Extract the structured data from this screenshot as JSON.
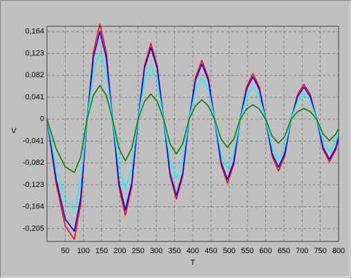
{
  "chart_data": {
    "type": "line",
    "x_label": "T",
    "y_label": "V",
    "x": [
      0,
      25,
      50,
      75,
      92.5,
      110,
      127.5,
      145,
      162.5,
      180,
      197.5,
      215,
      232.5,
      250,
      267.5,
      285,
      302.5,
      320,
      337.5,
      355,
      372.5,
      390,
      407.5,
      425,
      442.5,
      460,
      477.5,
      495,
      512.5,
      530,
      547.5,
      565,
      582.5,
      600,
      617.5,
      635,
      652.5,
      670,
      687.5,
      705,
      722.5,
      740,
      757.5,
      775,
      792.5,
      800
    ],
    "series": [
      {
        "color": "#ff0000",
        "values": [
          0,
          -0.12,
          -0.2,
          -0.225,
          -0.159,
          0,
          0.126,
          0.178,
          0.126,
          0,
          -0.127,
          -0.18,
          -0.127,
          0,
          0.1,
          0.142,
          0.1,
          0,
          -0.106,
          -0.15,
          -0.106,
          0,
          0.078,
          0.11,
          0.078,
          0,
          -0.085,
          -0.12,
          -0.085,
          0,
          0.06,
          0.085,
          0.06,
          0,
          -0.069,
          -0.097,
          -0.069,
          0,
          0.046,
          0.065,
          0.046,
          0,
          -0.057,
          -0.08,
          -0.057,
          -0.035
        ]
      },
      {
        "color": "#0000ff",
        "values": [
          0,
          -0.112,
          -0.187,
          -0.21,
          -0.148,
          0,
          0.116,
          0.164,
          0.116,
          0,
          -0.12,
          -0.17,
          -0.12,
          0,
          0.095,
          0.134,
          0.095,
          0,
          -0.101,
          -0.143,
          -0.101,
          0,
          0.073,
          0.103,
          0.073,
          0,
          -0.08,
          -0.113,
          -0.08,
          0,
          0.056,
          0.079,
          0.056,
          0,
          -0.064,
          -0.09,
          -0.064,
          0,
          0.042,
          0.06,
          0.042,
          0,
          -0.053,
          -0.075,
          -0.053,
          -0.033
        ]
      },
      {
        "color": "#00ffff",
        "values": [
          0,
          -0.09,
          -0.151,
          -0.17,
          -0.12,
          0,
          0.088,
          0.125,
          0.088,
          0,
          -0.092,
          -0.13,
          -0.092,
          0,
          0.071,
          0.1,
          0.071,
          0,
          -0.078,
          -0.11,
          -0.078,
          0,
          0.055,
          0.078,
          0.055,
          0,
          -0.065,
          -0.092,
          -0.065,
          0,
          0.042,
          0.06,
          0.042,
          0,
          -0.053,
          -0.075,
          -0.053,
          0,
          0.034,
          0.048,
          0.034,
          0,
          -0.042,
          -0.06,
          -0.042,
          -0.026
        ]
      },
      {
        "color": "#008000",
        "values": [
          0,
          -0.055,
          -0.089,
          -0.1,
          -0.071,
          0,
          0.045,
          0.063,
          0.045,
          0,
          -0.055,
          -0.078,
          -0.055,
          0,
          0.033,
          0.047,
          0.033,
          0,
          -0.046,
          -0.065,
          -0.046,
          0,
          0.025,
          0.036,
          0.025,
          0,
          -0.037,
          -0.053,
          -0.037,
          0,
          0.019,
          0.027,
          0.019,
          0,
          -0.032,
          -0.045,
          -0.032,
          0,
          0.014,
          0.02,
          0.014,
          0,
          -0.028,
          -0.04,
          -0.028,
          -0.018
        ]
      }
    ],
    "xlim": [
      0,
      800
    ],
    "xticks": [
      50,
      100,
      150,
      200,
      250,
      300,
      350,
      400,
      450,
      500,
      550,
      600,
      650,
      700,
      750,
      800
    ],
    "ylim": [
      -0.229,
      0.174
    ],
    "yticks": [
      {
        "value": 0.164,
        "label": "0,164"
      },
      {
        "value": 0.123,
        "label": "0,123"
      },
      {
        "value": 0.082,
        "label": "0,082"
      },
      {
        "value": 0.041,
        "label": "0,041"
      },
      0,
      {
        "value": -0.041,
        "label": "-0,041"
      },
      {
        "value": -0.082,
        "label": "-0,082"
      },
      {
        "value": -0.123,
        "label": "-0,123"
      },
      {
        "value": -0.164,
        "label": "-0,164"
      },
      {
        "value": -0.205,
        "label": "-0,205"
      }
    ],
    "grid": true
  }
}
